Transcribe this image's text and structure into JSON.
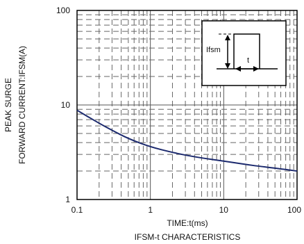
{
  "chart_data": {
    "type": "line",
    "title": "IFSM-t CHARACTERISTICS",
    "xlabel": "TIME:t(ms)",
    "ylabel_line1": "PEAK SURGE",
    "ylabel_line2": "FORWARD CURRENT:IFSM(A)",
    "xscale": "log",
    "yscale": "log",
    "xlim": [
      0.1,
      100
    ],
    "ylim": [
      1,
      100
    ],
    "x_ticks": [
      "0.1",
      "1",
      "10",
      "100"
    ],
    "y_ticks": [
      "1",
      "10",
      "100"
    ],
    "grid": true,
    "series": [
      {
        "color": "#1c2a6e",
        "x": [
          0.1,
          0.2,
          0.3,
          0.5,
          1,
          2,
          3,
          5,
          10,
          20,
          30,
          50,
          100
        ],
        "y": [
          8.8,
          6.4,
          5.4,
          4.4,
          3.6,
          3.15,
          2.95,
          2.75,
          2.55,
          2.35,
          2.25,
          2.15,
          2.0
        ]
      }
    ],
    "inset": {
      "ifsm_label": "Ifsm",
      "t_label": "t"
    }
  }
}
